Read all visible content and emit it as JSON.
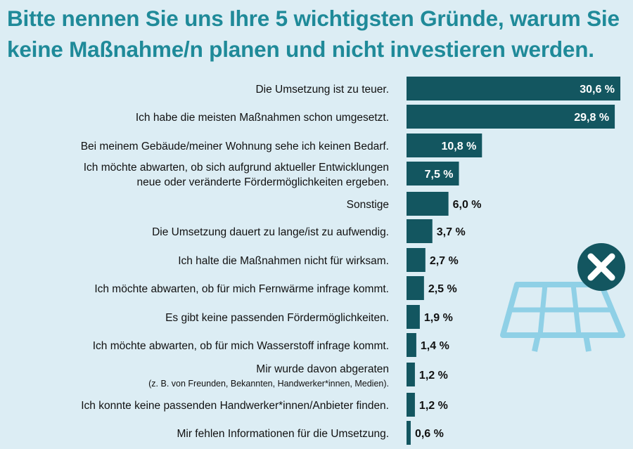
{
  "title": {
    "line1": "Bitte nennen Sie uns Ihre 5 wichtigsten Gründe, warum Sie",
    "line2": "keine Maßnahme/n planen und nicht investieren werden."
  },
  "colors": {
    "title": "#1f8a99",
    "bar": "#135660",
    "background": "#dcedf4",
    "icon_panel": "#8fd0e6",
    "icon_badge": "#135660"
  },
  "icons": [
    "solar-panel-icon",
    "close-icon"
  ],
  "chart_data": {
    "type": "bar",
    "orientation": "horizontal",
    "value_format": "percent",
    "categories": [
      "Die Umsetzung ist zu teuer.",
      "Ich habe die meisten Maßnahmen schon umgesetzt.",
      "Bei meinem Gebäude/meiner Wohnung sehe ich keinen Bedarf.",
      "Ich möchte abwarten, ob sich aufgrund aktueller Entwicklungen neue oder veränderte Fördermöglichkeiten ergeben.",
      "Sonstige",
      "Die Umsetzung dauert zu lange/ist zu aufwendig.",
      "Ich halte die Maßnahmen nicht für wirksam.",
      "Ich möchte abwarten, ob für mich Fernwärme infrage kommt.",
      "Es gibt keine passenden Fördermöglichkeiten.",
      "Ich möchte abwarten, ob für mich Wasserstoff infrage kommt.",
      "Mir wurde davon abgeraten",
      "Ich konnte keine passenden Handwerker*innen/Anbieter finden.",
      "Mir fehlen Informationen für die Umsetzung."
    ],
    "category_lines": [
      [
        "Die Umsetzung ist zu teuer."
      ],
      [
        "Ich habe die meisten Maßnahmen schon umgesetzt."
      ],
      [
        "Bei meinem Gebäude/meiner Wohnung sehe ich keinen Bedarf."
      ],
      [
        "Ich möchte abwarten, ob sich aufgrund aktueller Entwicklungen",
        "neue oder veränderte Fördermöglichkeiten ergeben."
      ],
      [
        "Sonstige"
      ],
      [
        "Die Umsetzung dauert zu lange/ist zu aufwendig."
      ],
      [
        "Ich halte die Maßnahmen nicht für wirksam."
      ],
      [
        "Ich möchte abwarten, ob für mich Fernwärme infrage kommt."
      ],
      [
        "Es gibt keine passenden Fördermöglichkeiten."
      ],
      [
        "Ich möchte abwarten, ob für mich Wasserstoff infrage kommt."
      ],
      [
        "Mir wurde davon abgeraten"
      ],
      [
        "Ich konnte keine passenden Handwerker*innen/Anbieter finden."
      ],
      [
        "Mir fehlen Informationen für die Umsetzung."
      ]
    ],
    "category_notes": [
      "",
      "",
      "",
      "",
      "",
      "",
      "",
      "",
      "",
      "",
      "(z. B. von Freunden, Bekannten, Handwerker*innen, Medien).",
      "",
      ""
    ],
    "values": [
      30.6,
      29.8,
      10.8,
      7.5,
      6.0,
      3.7,
      2.7,
      2.5,
      1.9,
      1.4,
      1.2,
      1.2,
      0.6
    ],
    "value_labels": [
      "30,6 %",
      "29,8 %",
      "10,8 %",
      "7,5 %",
      "6,0 %",
      "3,7 %",
      "2,7 %",
      "2,5 %",
      "1,9 %",
      "1,4 %",
      "1,2 %",
      "1,2 %",
      "0,6 %"
    ],
    "xlim": [
      0,
      31
    ],
    "grid": false,
    "legend": "none"
  }
}
